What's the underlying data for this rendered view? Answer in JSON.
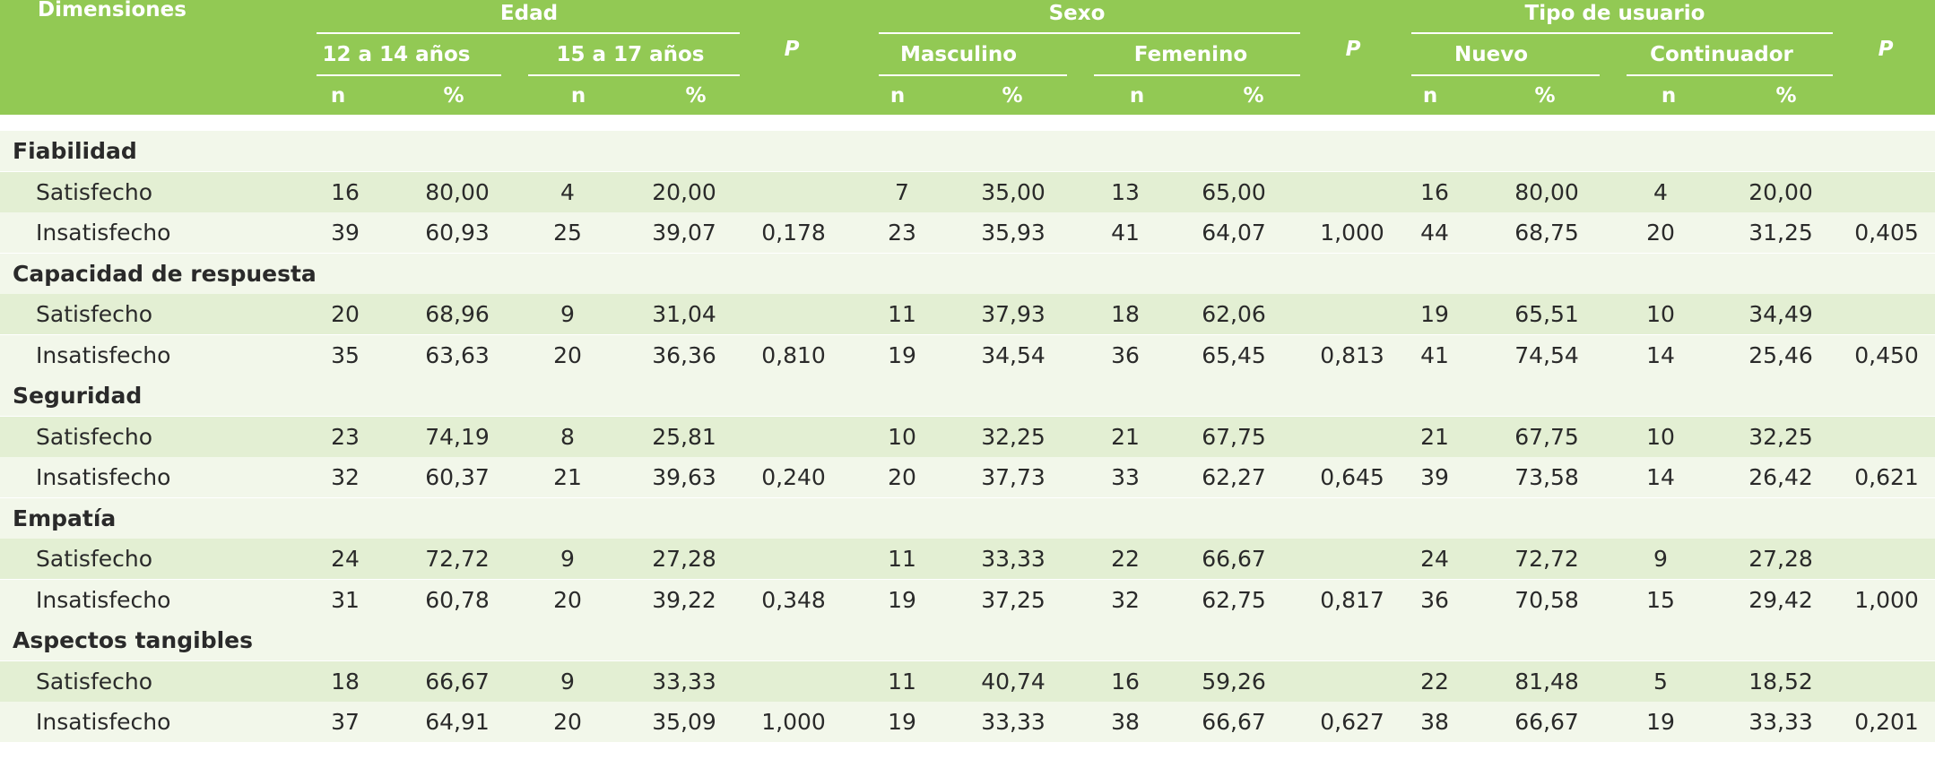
{
  "header": {
    "dimensions": "Dimensiones",
    "groups": [
      {
        "title": "Edad",
        "sub": [
          "12 a 14 años",
          "15 a 17 años"
        ]
      },
      {
        "title": "Sexo",
        "sub": [
          "Masculino",
          "Femenino"
        ]
      },
      {
        "title": "Tipo de usuario",
        "sub": [
          "Nuevo",
          "Continuador"
        ]
      }
    ],
    "p_label": "P",
    "n_label": "n",
    "pct_label": "%"
  },
  "sections": [
    {
      "title": "Fiabilidad",
      "rows": [
        {
          "label": "Satisfecho",
          "v": [
            "16",
            "80,00",
            "4",
            "20,00",
            "",
            "7",
            "35,00",
            "13",
            "65,00",
            "",
            "16",
            "80,00",
            "4",
            "20,00",
            ""
          ]
        },
        {
          "label": "Insatisfecho",
          "v": [
            "39",
            "60,93",
            "25",
            "39,07",
            "0,178",
            "23",
            "35,93",
            "41",
            "64,07",
            "1,000",
            "44",
            "68,75",
            "20",
            "31,25",
            "0,405"
          ]
        }
      ]
    },
    {
      "title": "Capacidad de respuesta",
      "rows": [
        {
          "label": "Satisfecho",
          "v": [
            "20",
            "68,96",
            "9",
            "31,04",
            "",
            "11",
            "37,93",
            "18",
            "62,06",
            "",
            "19",
            "65,51",
            "10",
            "34,49",
            ""
          ]
        },
        {
          "label": "Insatisfecho",
          "v": [
            "35",
            "63,63",
            "20",
            "36,36",
            "0,810",
            "19",
            "34,54",
            "36",
            "65,45",
            "0,813",
            "41",
            "74,54",
            "14",
            "25,46",
            "0,450"
          ]
        }
      ]
    },
    {
      "title": "Seguridad",
      "rows": [
        {
          "label": "Satisfecho",
          "v": [
            "23",
            "74,19",
            "8",
            "25,81",
            "",
            "10",
            "32,25",
            "21",
            "67,75",
            "",
            "21",
            "67,75",
            "10",
            "32,25",
            ""
          ]
        },
        {
          "label": "Insatisfecho",
          "v": [
            "32",
            "60,37",
            "21",
            "39,63",
            "0,240",
            "20",
            "37,73",
            "33",
            "62,27",
            "0,645",
            "39",
            "73,58",
            "14",
            "26,42",
            "0,621"
          ]
        }
      ]
    },
    {
      "title": "Empatía",
      "rows": [
        {
          "label": "Satisfecho",
          "v": [
            "24",
            "72,72",
            "9",
            "27,28",
            "",
            "11",
            "33,33",
            "22",
            "66,67",
            "",
            "24",
            "72,72",
            "9",
            "27,28",
            ""
          ]
        },
        {
          "label": "Insatisfecho",
          "v": [
            "31",
            "60,78",
            "20",
            "39,22",
            "0,348",
            "19",
            "37,25",
            "32",
            "62,75",
            "0,817",
            "36",
            "70,58",
            "15",
            "29,42",
            "1,000"
          ]
        }
      ]
    },
    {
      "title": "Aspectos tangibles",
      "rows": [
        {
          "label": "Satisfecho",
          "v": [
            "18",
            "66,67",
            "9",
            "33,33",
            "",
            "11",
            "40,74",
            "16",
            "59,26",
            "",
            "22",
            "81,48",
            "5",
            "18,52",
            ""
          ]
        },
        {
          "label": "Insatisfecho",
          "v": [
            "37",
            "64,91",
            "20",
            "35,09",
            "1,000",
            "19",
            "33,33",
            "38",
            "66,67",
            "0,627",
            "38",
            "66,67",
            "19",
            "33,33",
            "0,201"
          ]
        }
      ]
    }
  ],
  "colors": {
    "header_green": "#92c954",
    "band_light": "#f2f7ea",
    "band_medium": "#e3efd3"
  }
}
